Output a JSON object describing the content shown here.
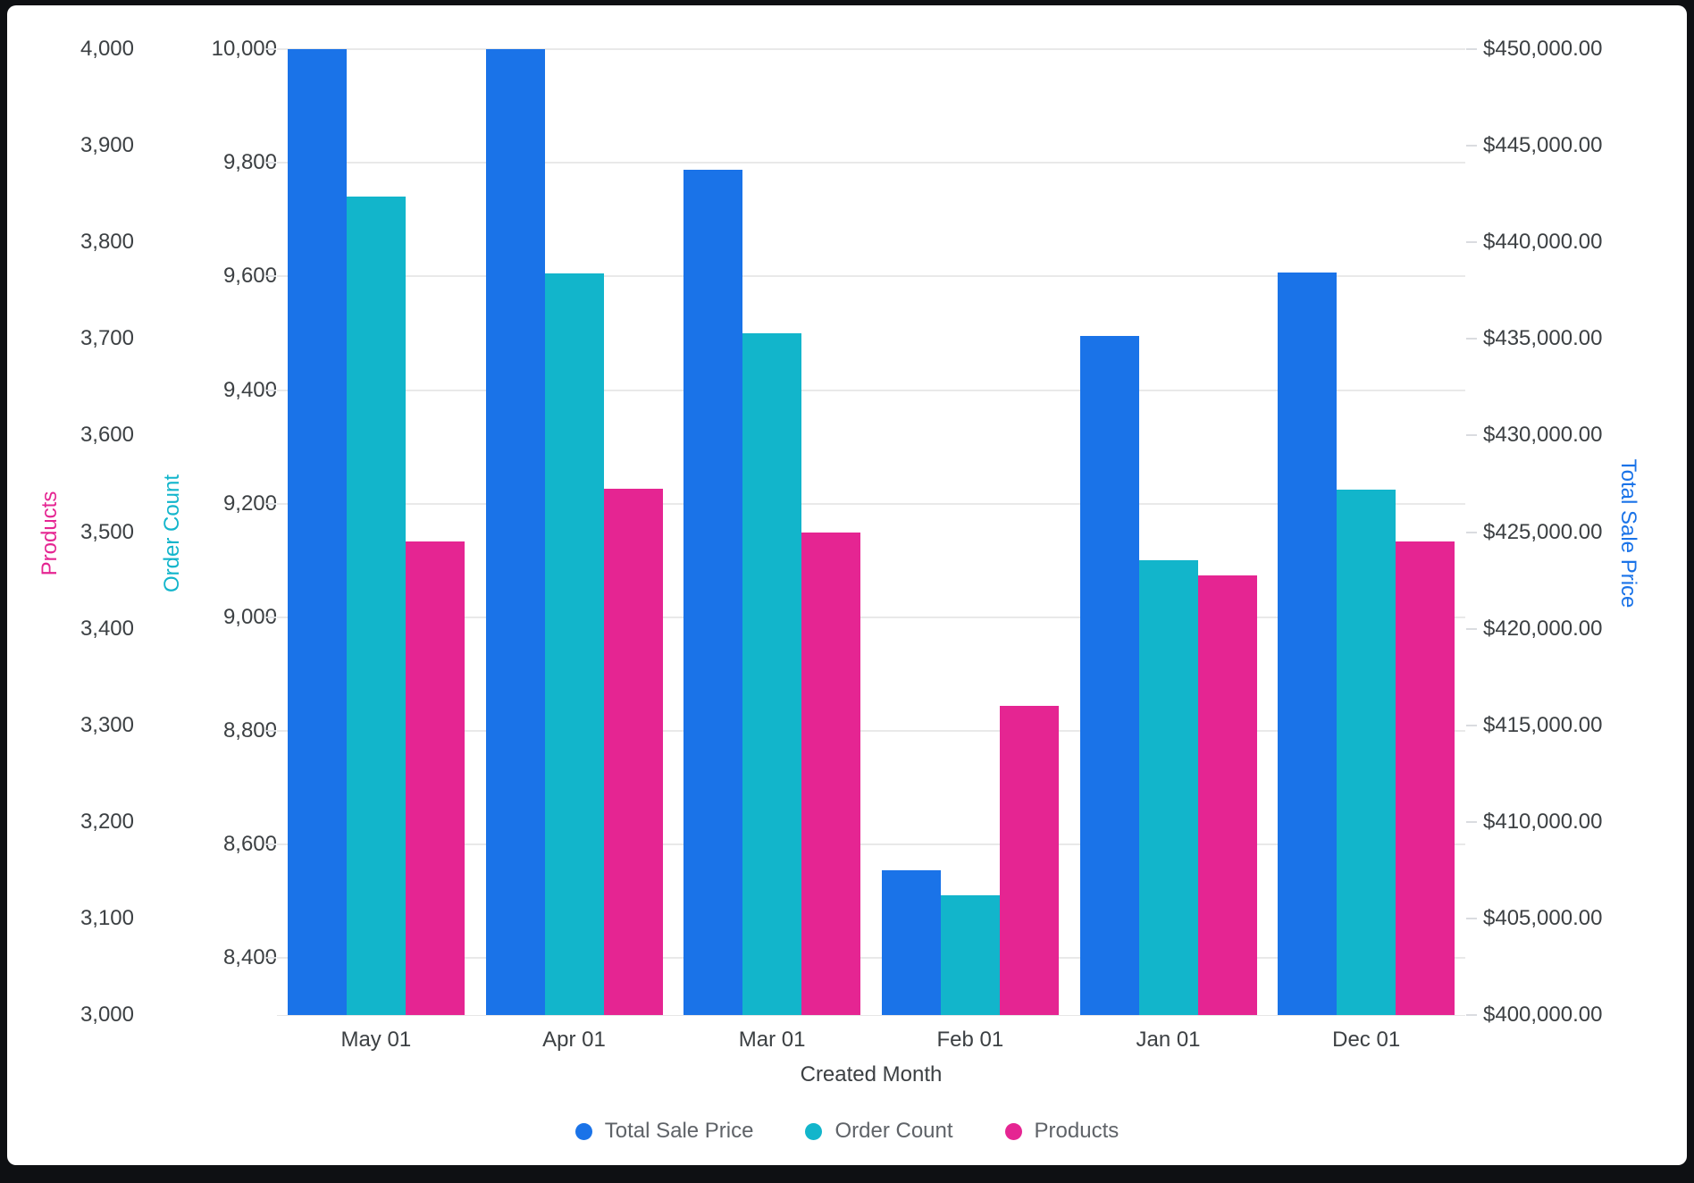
{
  "chart_data": {
    "type": "bar",
    "categories": [
      "May 01",
      "Apr 01",
      "Mar 01",
      "Feb 01",
      "Jan 01",
      "Dec 01"
    ],
    "xlabel": "Created Month",
    "grid": "horizontal",
    "legend_position": "bottom",
    "series": [
      {
        "name": "Total Sale Price",
        "axis": "sale",
        "color": "#1A73E8",
        "values": [
          450000,
          450000,
          443750,
          407500,
          435150,
          438450
        ]
      },
      {
        "name": "Order Count",
        "axis": "orders",
        "color": "#12B5CB",
        "values": [
          9740,
          9605,
          9500,
          8510,
          9100,
          9225
        ]
      },
      {
        "name": "Products",
        "axis": "products",
        "color": "#E52592",
        "values": [
          3490,
          3545,
          3500,
          3320,
          3455,
          3490
        ]
      }
    ],
    "axes": {
      "products": {
        "title": "Products",
        "color": "#E52592",
        "min": 3000,
        "max": 4000,
        "tick_labels": [
          "4,000",
          "3,900",
          "3,800",
          "3,700",
          "3,600",
          "3,500",
          "3,400",
          "3,300",
          "3,200",
          "3,100",
          "3,000"
        ],
        "tick_values": [
          4000,
          3900,
          3800,
          3700,
          3600,
          3500,
          3400,
          3300,
          3200,
          3100,
          3000
        ]
      },
      "orders": {
        "title": "Order Count",
        "color": "#12B5CB",
        "min": 8300,
        "max": 10000,
        "tick_labels": [
          "10,000",
          "9,800",
          "9,600",
          "9,400",
          "9,200",
          "9,000",
          "8,800",
          "8,600",
          "8,400"
        ],
        "tick_values": [
          10000,
          9800,
          9600,
          9400,
          9200,
          9000,
          8800,
          8600,
          8400
        ]
      },
      "sale": {
        "title": "Total Sale Price",
        "color": "#1A73E8",
        "min": 400000,
        "max": 450000,
        "tick_labels": [
          "$450,000.00",
          "$445,000.00",
          "$440,000.00",
          "$435,000.00",
          "$430,000.00",
          "$425,000.00",
          "$420,000.00",
          "$415,000.00",
          "$410,000.00",
          "$405,000.00",
          "$400,000.00"
        ],
        "tick_values": [
          450000,
          445000,
          440000,
          435000,
          430000,
          425000,
          420000,
          415000,
          410000,
          405000,
          400000
        ]
      }
    },
    "legend": [
      "Total Sale Price",
      "Order Count",
      "Products"
    ]
  },
  "colors": {
    "tick_text": "#3C4043",
    "legend_text": "#5F6368",
    "gridline": "#E9E9E9",
    "frame": "#0E1013",
    "card": "#FFFFFF"
  }
}
